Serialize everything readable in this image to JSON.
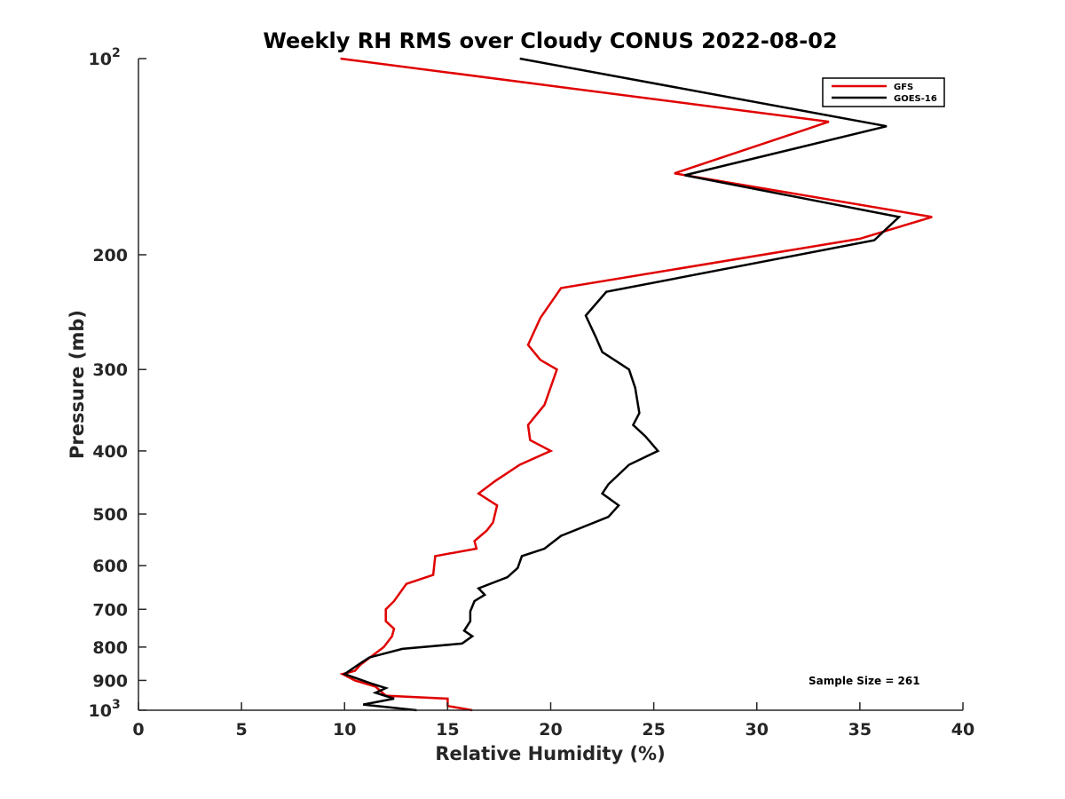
{
  "chart_data": {
    "type": "line",
    "title": "Weekly RH RMS over Cloudy CONUS 2022-08-02",
    "xlabel": "Relative Humidity (%)",
    "ylabel": "Pressure (mb)",
    "xlim": [
      0,
      40
    ],
    "ylim": [
      100,
      1000
    ],
    "y_scale": "log",
    "y_reversed": true,
    "x_ticks": [
      "0",
      "5",
      "10",
      "15",
      "20",
      "25",
      "30",
      "35",
      "40"
    ],
    "x_tick_values": [
      0,
      5,
      10,
      15,
      20,
      25,
      30,
      35,
      40
    ],
    "y_ticks": [
      {
        "value": 100,
        "base": "10",
        "exp": "2"
      },
      {
        "value": 200,
        "label": "200"
      },
      {
        "value": 300,
        "label": "300"
      },
      {
        "value": 400,
        "label": "400"
      },
      {
        "value": 500,
        "label": "500"
      },
      {
        "value": 600,
        "label": "600"
      },
      {
        "value": 700,
        "label": "700"
      },
      {
        "value": 800,
        "label": "800"
      },
      {
        "value": 900,
        "label": "900"
      },
      {
        "value": 1000,
        "base": "10",
        "exp": "3"
      }
    ],
    "legend_position": "top-right",
    "grid": false,
    "series": [
      {
        "name": "GFS",
        "color": "#e00000",
        "points": [
          [
            9.8,
            100
          ],
          [
            33.5,
            125
          ],
          [
            26.0,
            150
          ],
          [
            38.5,
            175
          ],
          [
            35.0,
            189
          ],
          [
            20.5,
            225
          ],
          [
            19.5,
            250
          ],
          [
            18.9,
            275
          ],
          [
            19.5,
            290
          ],
          [
            20.3,
            300
          ],
          [
            19.7,
            340
          ],
          [
            18.9,
            365
          ],
          [
            19.0,
            385
          ],
          [
            20.0,
            400
          ],
          [
            18.5,
            420
          ],
          [
            17.3,
            445
          ],
          [
            16.5,
            465
          ],
          [
            17.4,
            485
          ],
          [
            17.2,
            515
          ],
          [
            16.9,
            530
          ],
          [
            16.3,
            550
          ],
          [
            16.4,
            565
          ],
          [
            14.4,
            580
          ],
          [
            14.3,
            620
          ],
          [
            13.0,
            640
          ],
          [
            12.4,
            680
          ],
          [
            12.0,
            700
          ],
          [
            12.0,
            730
          ],
          [
            12.4,
            750
          ],
          [
            12.3,
            770
          ],
          [
            11.9,
            800
          ],
          [
            10.8,
            850
          ],
          [
            10.5,
            870
          ],
          [
            9.9,
            880
          ],
          [
            10.5,
            900
          ],
          [
            11.5,
            920
          ],
          [
            12.0,
            950
          ],
          [
            15.0,
            960
          ],
          [
            15.0,
            985
          ],
          [
            16.2,
            1000
          ]
        ]
      },
      {
        "name": "GOES-16",
        "color": "#000000",
        "points": [
          [
            18.5,
            100
          ],
          [
            36.3,
            127
          ],
          [
            26.5,
            151
          ],
          [
            36.9,
            175
          ],
          [
            35.7,
            190
          ],
          [
            22.7,
            228
          ],
          [
            21.7,
            248
          ],
          [
            22.2,
            268
          ],
          [
            22.5,
            282
          ],
          [
            23.8,
            300
          ],
          [
            24.1,
            320
          ],
          [
            24.3,
            350
          ],
          [
            24.0,
            365
          ],
          [
            24.6,
            380
          ],
          [
            25.2,
            400
          ],
          [
            23.8,
            420
          ],
          [
            22.8,
            450
          ],
          [
            22.5,
            465
          ],
          [
            23.3,
            485
          ],
          [
            22.8,
            505
          ],
          [
            20.5,
            540
          ],
          [
            19.7,
            565
          ],
          [
            18.6,
            580
          ],
          [
            18.4,
            605
          ],
          [
            17.9,
            625
          ],
          [
            16.5,
            650
          ],
          [
            16.8,
            665
          ],
          [
            16.3,
            680
          ],
          [
            16.1,
            705
          ],
          [
            16.1,
            730
          ],
          [
            15.8,
            755
          ],
          [
            16.2,
            770
          ],
          [
            15.7,
            790
          ],
          [
            12.8,
            805
          ],
          [
            11.2,
            830
          ],
          [
            10.7,
            850
          ],
          [
            10.0,
            880
          ],
          [
            11.3,
            910
          ],
          [
            12.0,
            925
          ],
          [
            11.5,
            940
          ],
          [
            12.4,
            960
          ],
          [
            10.9,
            980
          ],
          [
            13.5,
            1000
          ]
        ]
      }
    ],
    "annotation": "Sample Size = 261"
  }
}
